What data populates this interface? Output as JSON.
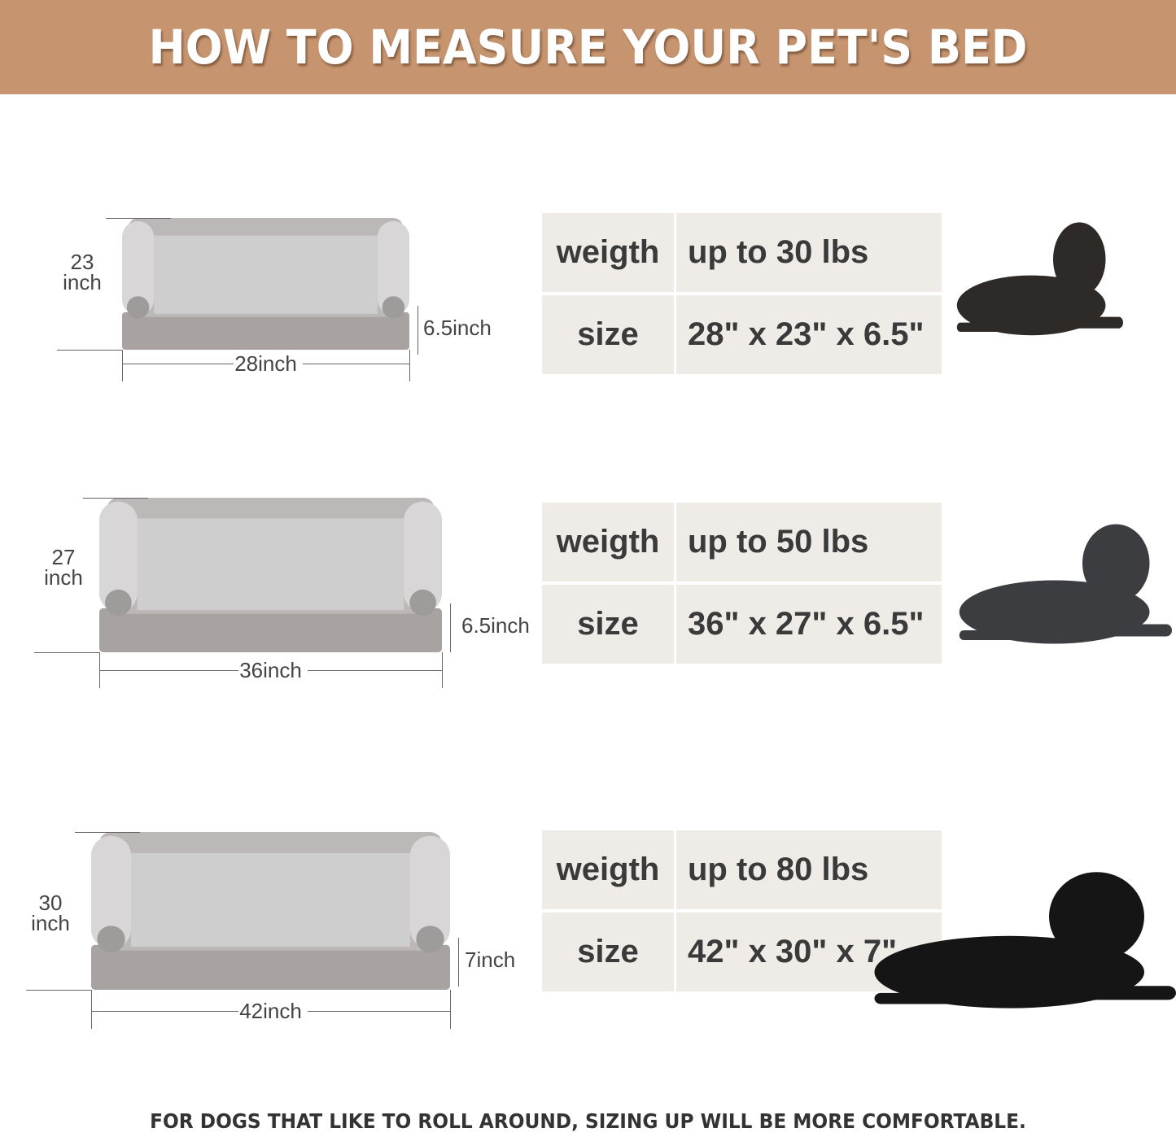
{
  "header": {
    "title": "HOW TO MEASURE YOUR PET'S BED",
    "color": "#c6946e"
  },
  "sizes": [
    {
      "depth": "23",
      "depth_unit": "inch",
      "height": "6.5inch",
      "width": "28inch",
      "weight_label": "weigth",
      "weight": "up to 30 lbs",
      "size_label": "size",
      "size": "28\" x 23\" x 6.5\"",
      "dog": "french-bulldog"
    },
    {
      "depth": "27",
      "depth_unit": "inch",
      "height": "6.5inch",
      "width": "36inch",
      "weight_label": "weigth",
      "weight": "up to 50 lbs",
      "size_label": "size",
      "size": "36\" x 27\" x 6.5\"",
      "dog": "spaniel"
    },
    {
      "depth": "30",
      "depth_unit": "inch",
      "height": "7inch",
      "width": "42inch",
      "weight_label": "weigth",
      "weight": "up to 80 lbs",
      "size_label": "size",
      "size": "42\" x 30\" x 7\"",
      "dog": "labrador"
    }
  ],
  "footer": "FOR DOGS THAT LIKE TO ROLL AROUND, SIZING UP WILL BE MORE COMFORTABLE."
}
